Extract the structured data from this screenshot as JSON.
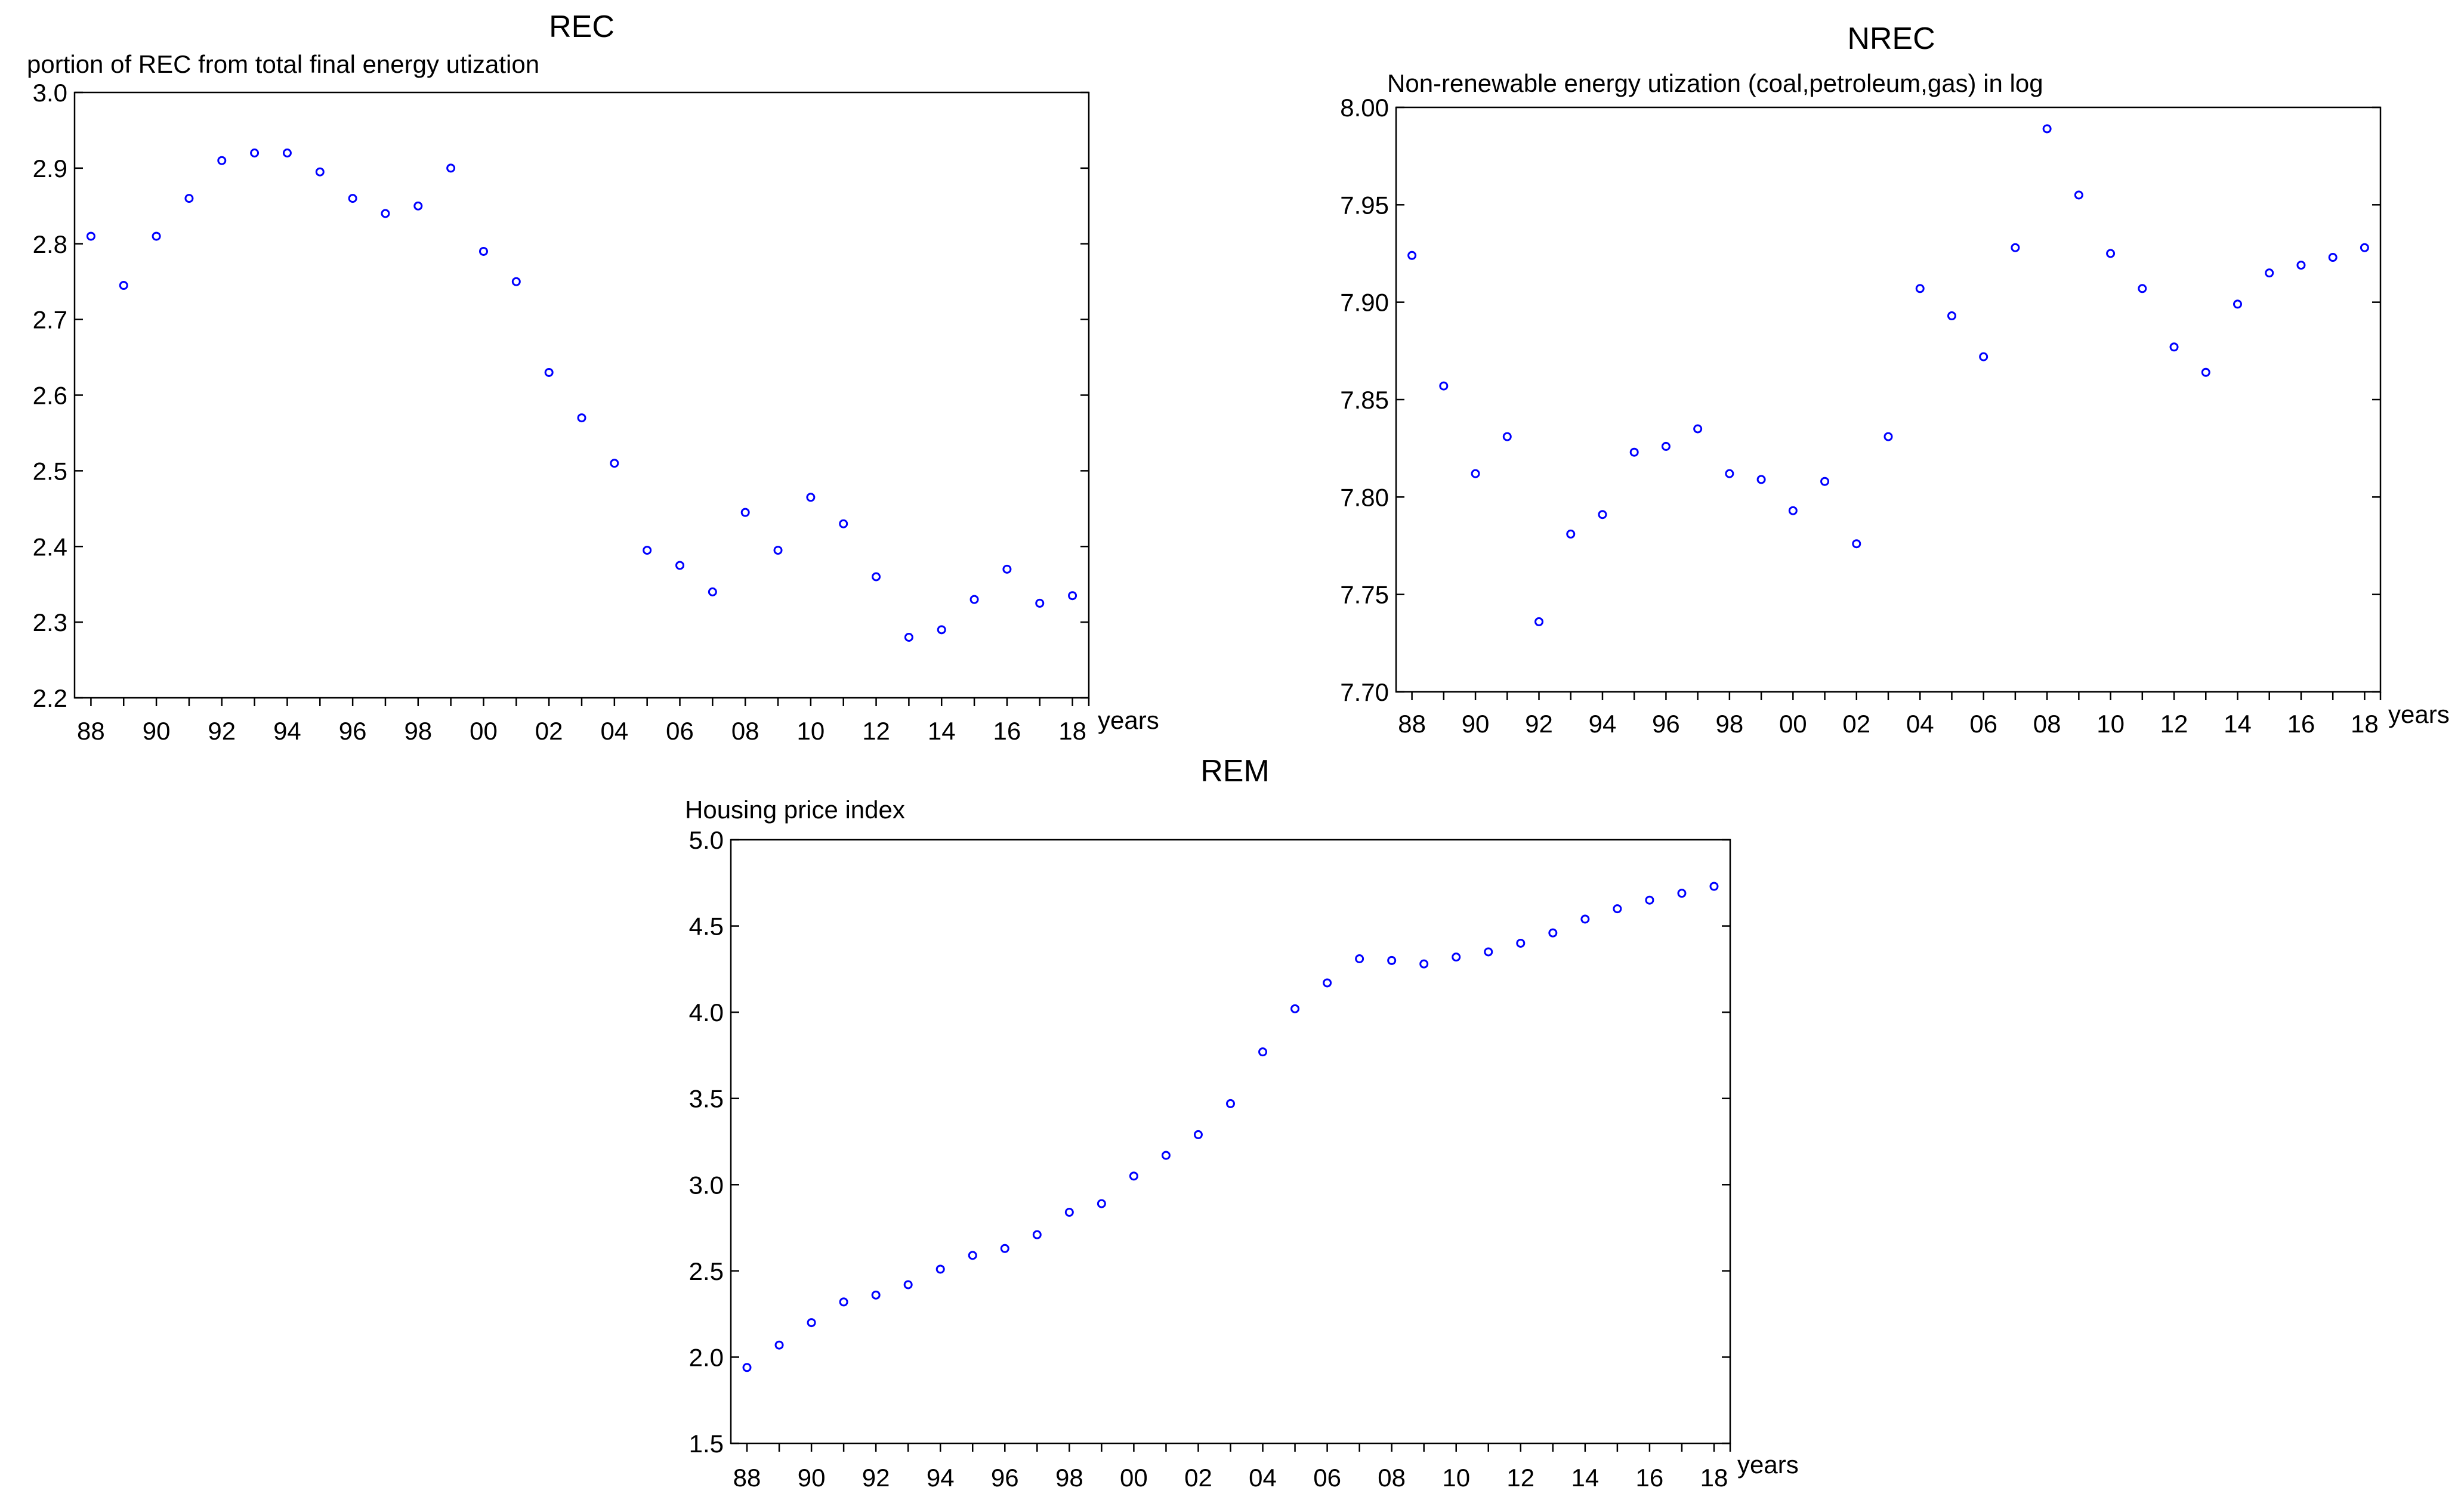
{
  "chart_data": [
    {
      "type": "scatter",
      "title": "REC",
      "ylabel": "portion of REC from  total final energy utization",
      "xlabel": "years",
      "ylim": [
        2.2,
        3.0
      ],
      "yticks": [
        "2.2",
        "2.3",
        "2.4",
        "2.5",
        "2.6",
        "2.7",
        "2.8",
        "2.9",
        "3.0"
      ],
      "xticks": [
        "88",
        "90",
        "92",
        "94",
        "96",
        "98",
        "00",
        "02",
        "04",
        "06",
        "08",
        "10",
        "12",
        "14",
        "16",
        "18"
      ],
      "x": [
        1988,
        1989,
        1990,
        1991,
        1992,
        1993,
        1994,
        1995,
        1996,
        1997,
        1998,
        1999,
        2000,
        2001,
        2002,
        2003,
        2004,
        2005,
        2006,
        2007,
        2008,
        2009,
        2010,
        2011,
        2012,
        2013,
        2014,
        2015,
        2016,
        2017,
        2018
      ],
      "values": [
        2.81,
        2.745,
        2.81,
        2.86,
        2.91,
        2.92,
        2.92,
        2.895,
        2.86,
        2.84,
        2.85,
        2.9,
        2.79,
        2.75,
        2.63,
        2.57,
        2.51,
        2.395,
        2.375,
        2.34,
        2.445,
        2.395,
        2.465,
        2.43,
        2.36,
        2.28,
        2.29,
        2.33,
        2.37,
        2.325,
        2.335
      ],
      "color": "#0000ff"
    },
    {
      "type": "scatter",
      "title": "NREC",
      "ylabel": "Non-renewable energy utization (coal,petroleum,gas) in log",
      "xlabel": "years",
      "ylim": [
        7.7,
        8.0
      ],
      "yticks": [
        "7.70",
        "7.75",
        "7.80",
        "7.85",
        "7.90",
        "7.95",
        "8.00"
      ],
      "xticks": [
        "88",
        "90",
        "92",
        "94",
        "96",
        "98",
        "00",
        "02",
        "04",
        "06",
        "08",
        "10",
        "12",
        "14",
        "16",
        "18"
      ],
      "x": [
        1988,
        1989,
        1990,
        1991,
        1992,
        1993,
        1994,
        1995,
        1996,
        1997,
        1998,
        1999,
        2000,
        2001,
        2002,
        2003,
        2004,
        2005,
        2006,
        2007,
        2008,
        2009,
        2010,
        2011,
        2012,
        2013,
        2014,
        2015,
        2016,
        2017,
        2018
      ],
      "values": [
        7.924,
        7.857,
        7.812,
        7.831,
        7.736,
        7.781,
        7.791,
        7.823,
        7.826,
        7.835,
        7.812,
        7.809,
        7.793,
        7.808,
        7.776,
        7.831,
        7.907,
        7.893,
        7.872,
        7.928,
        7.989,
        7.955,
        7.925,
        7.907,
        7.877,
        7.864,
        7.899,
        7.915,
        7.919,
        7.923,
        7.928
      ],
      "color": "#0000ff"
    },
    {
      "type": "scatter",
      "title": "REM",
      "ylabel": "Housing price index",
      "xlabel": "years",
      "ylim": [
        1.5,
        5.0
      ],
      "yticks": [
        "1.5",
        "2.0",
        "2.5",
        "3.0",
        "3.5",
        "4.0",
        "4.5",
        "5.0"
      ],
      "xticks": [
        "88",
        "90",
        "92",
        "94",
        "96",
        "98",
        "00",
        "02",
        "04",
        "06",
        "08",
        "10",
        "12",
        "14",
        "16",
        "18"
      ],
      "x": [
        1988,
        1989,
        1990,
        1991,
        1992,
        1993,
        1994,
        1995,
        1996,
        1997,
        1998,
        1999,
        2000,
        2001,
        2002,
        2003,
        2004,
        2005,
        2006,
        2007,
        2008,
        2009,
        2010,
        2011,
        2012,
        2013,
        2014,
        2015,
        2016,
        2017,
        2018
      ],
      "values": [
        1.94,
        2.07,
        2.2,
        2.32,
        2.36,
        2.42,
        2.51,
        2.59,
        2.63,
        2.71,
        2.84,
        2.89,
        3.05,
        3.17,
        3.29,
        3.47,
        3.77,
        4.02,
        4.17,
        4.31,
        4.3,
        4.28,
        4.32,
        4.35,
        4.4,
        4.46,
        4.54,
        4.6,
        4.65,
        4.69,
        4.73
      ],
      "color": "#0000ff"
    }
  ]
}
